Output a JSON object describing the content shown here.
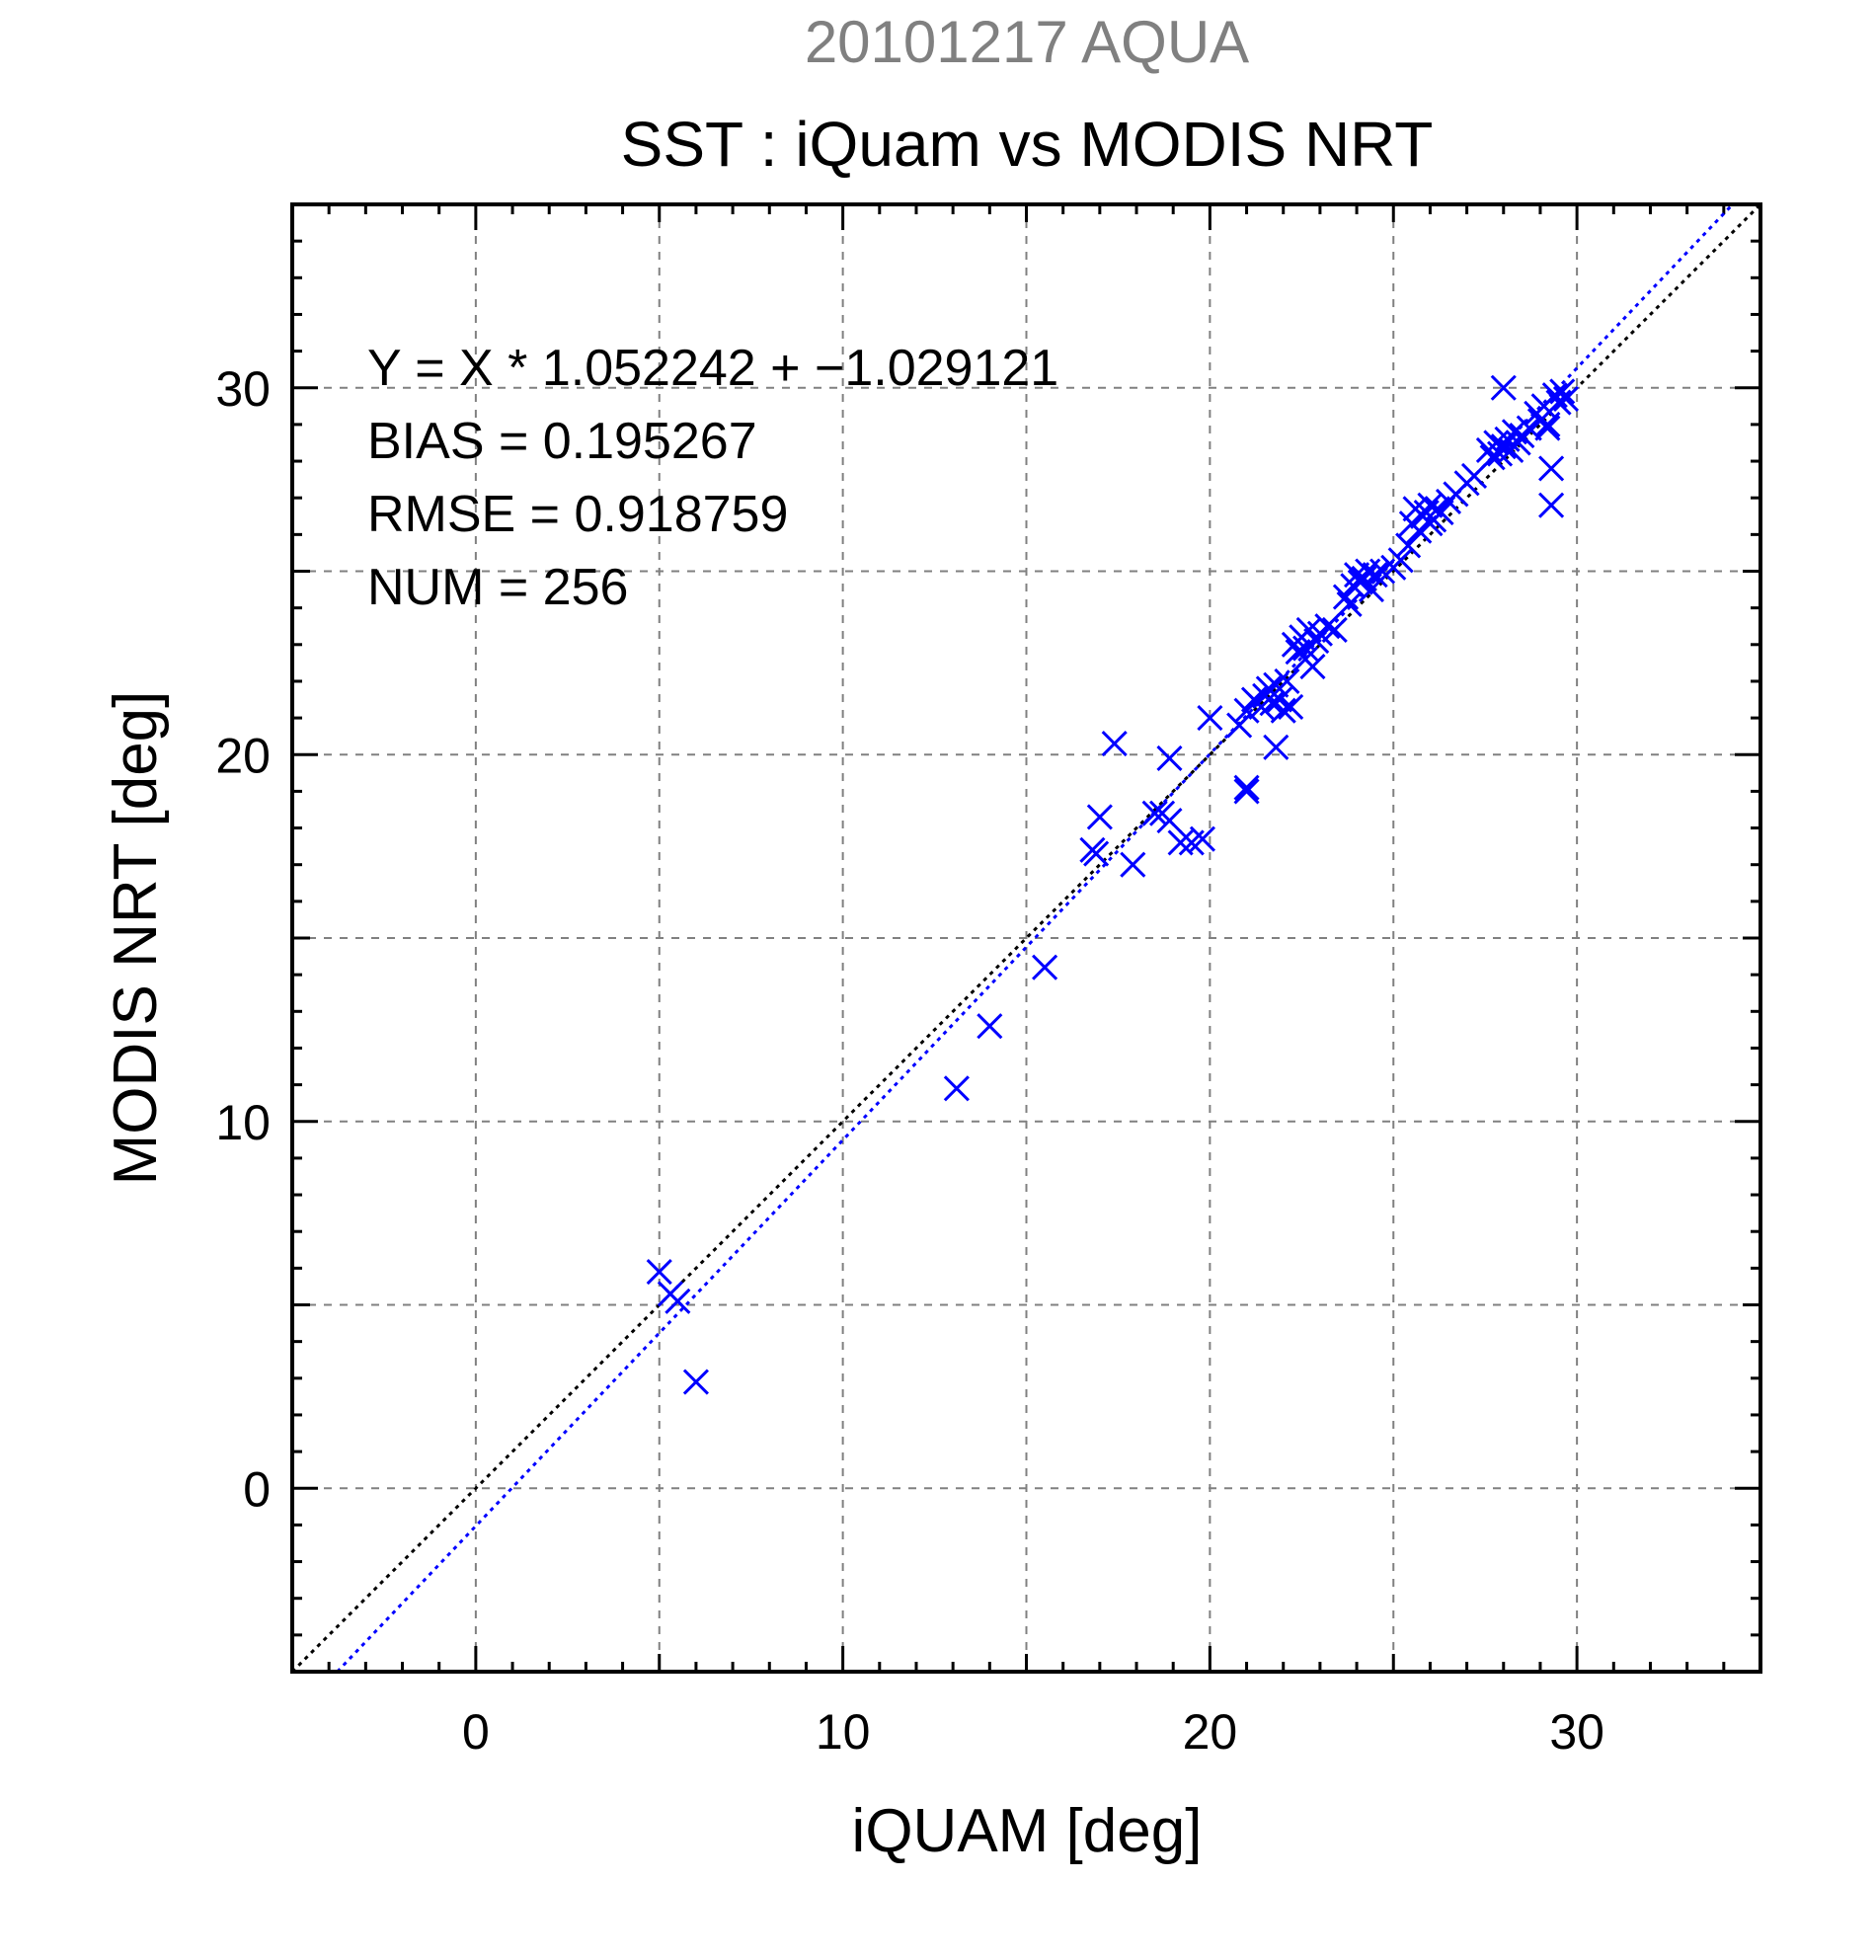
{
  "date_title": "20101217 AQUA",
  "chart_data": {
    "type": "scatter",
    "title": "SST : iQuam vs MODIS NRT",
    "xlabel": "iQUAM [deg]",
    "ylabel": "MODIS NRT [deg]",
    "xlim": [
      -5,
      35
    ],
    "ylim": [
      -5,
      35
    ],
    "xticks": [
      0,
      10,
      20,
      30
    ],
    "yticks": [
      0,
      10,
      20,
      30
    ],
    "grid": true,
    "marker": "x",
    "colors": {
      "points": "#0000ff",
      "fit_line": "#0000ff",
      "identity_line": "#000000",
      "date_title": "#808080",
      "grid": "#808080"
    },
    "stats": {
      "equation": "Y = X * 1.052242 + −1.029121",
      "bias": "BIAS = 0.195267",
      "rmse": "RMSE = 0.918759",
      "num": "NUM = 256"
    },
    "lines": [
      {
        "kind": "identity",
        "slope": 1,
        "intercept": 0,
        "style": "dotted"
      },
      {
        "kind": "fit",
        "slope": 1.052242,
        "intercept": -1.029121,
        "style": "dotted"
      }
    ],
    "points": [
      [
        5.0,
        5.9
      ],
      [
        5.3,
        5.3
      ],
      [
        5.5,
        5.1
      ],
      [
        6.0,
        2.9
      ],
      [
        13.1,
        10.9
      ],
      [
        14.0,
        12.6
      ],
      [
        15.5,
        14.2
      ],
      [
        16.8,
        17.4
      ],
      [
        16.9,
        17.3
      ],
      [
        17.0,
        18.3
      ],
      [
        17.4,
        20.3
      ],
      [
        17.9,
        17.0
      ],
      [
        18.5,
        18.4
      ],
      [
        18.7,
        18.4
      ],
      [
        18.9,
        19.9
      ],
      [
        18.9,
        18.2
      ],
      [
        19.2,
        17.6
      ],
      [
        19.5,
        17.6
      ],
      [
        19.8,
        17.7
      ],
      [
        20.0,
        21.0
      ],
      [
        20.8,
        20.8
      ],
      [
        21.0,
        19.1
      ],
      [
        21.0,
        19.0
      ],
      [
        21.0,
        21.2
      ],
      [
        21.2,
        21.5
      ],
      [
        21.4,
        21.3
      ],
      [
        21.5,
        21.6
      ],
      [
        21.6,
        21.8
      ],
      [
        21.7,
        21.4
      ],
      [
        21.8,
        21.9
      ],
      [
        21.9,
        21.5
      ],
      [
        21.8,
        20.2
      ],
      [
        22.0,
        21.2
      ],
      [
        22.1,
        22.0
      ],
      [
        22.2,
        21.3
      ],
      [
        22.3,
        23.0
      ],
      [
        22.4,
        22.8
      ],
      [
        22.5,
        23.2
      ],
      [
        22.6,
        22.9
      ],
      [
        22.6,
        22.6
      ],
      [
        22.7,
        23.4
      ],
      [
        22.8,
        22.4
      ],
      [
        22.9,
        23.1
      ],
      [
        23.0,
        23.3
      ],
      [
        23.2,
        23.5
      ],
      [
        23.4,
        23.4
      ],
      [
        23.7,
        24.3
      ],
      [
        23.8,
        24.1
      ],
      [
        23.9,
        24.6
      ],
      [
        24.0,
        24.9
      ],
      [
        24.1,
        24.7
      ],
      [
        24.2,
        24.8
      ],
      [
        24.3,
        25.0
      ],
      [
        24.4,
        24.5
      ],
      [
        24.5,
        24.9
      ],
      [
        24.7,
        25.0
      ],
      [
        25.0,
        25.1
      ],
      [
        25.2,
        25.3
      ],
      [
        25.4,
        25.7
      ],
      [
        25.5,
        26.3
      ],
      [
        25.6,
        26.7
      ],
      [
        25.7,
        26.1
      ],
      [
        25.8,
        26.5
      ],
      [
        25.9,
        26.6
      ],
      [
        26.0,
        26.8
      ],
      [
        26.0,
        26.3
      ],
      [
        26.1,
        26.4
      ],
      [
        26.2,
        26.7
      ],
      [
        26.3,
        26.6
      ],
      [
        26.5,
        26.9
      ],
      [
        26.7,
        27.1
      ],
      [
        27.0,
        27.4
      ],
      [
        27.2,
        27.6
      ],
      [
        27.6,
        28.3
      ],
      [
        27.7,
        28.1
      ],
      [
        27.8,
        28.5
      ],
      [
        27.9,
        28.2
      ],
      [
        28.0,
        30.0
      ],
      [
        28.0,
        28.4
      ],
      [
        28.1,
        28.6
      ],
      [
        28.2,
        28.3
      ],
      [
        28.3,
        28.8
      ],
      [
        28.4,
        28.5
      ],
      [
        28.5,
        28.7
      ],
      [
        28.7,
        28.9
      ],
      [
        28.9,
        29.3
      ],
      [
        29.0,
        29.1
      ],
      [
        29.1,
        29.5
      ],
      [
        29.2,
        29.0
      ],
      [
        29.2,
        28.9
      ],
      [
        29.3,
        27.8
      ],
      [
        29.3,
        26.8
      ],
      [
        29.4,
        29.8
      ],
      [
        29.5,
        29.6
      ],
      [
        29.6,
        29.9
      ],
      [
        29.7,
        29.7
      ]
    ]
  }
}
